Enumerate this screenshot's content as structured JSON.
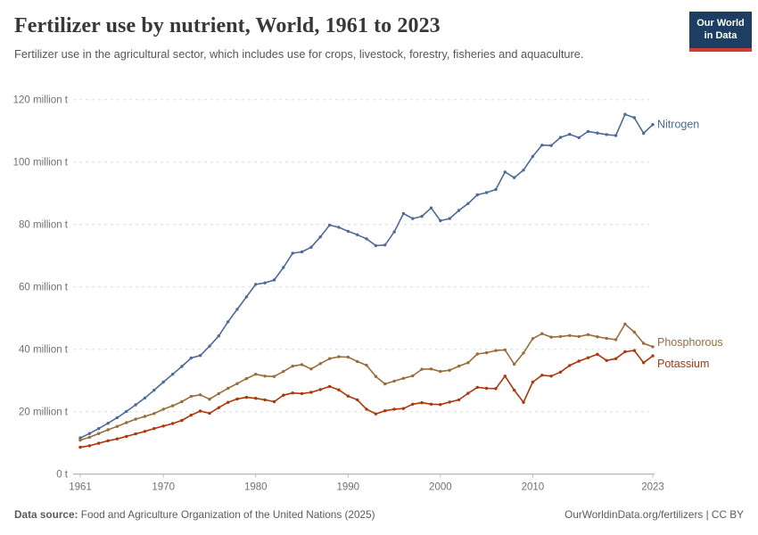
{
  "header": {
    "title": "Fertilizer use by nutrient, World, 1961 to 2023",
    "subtitle": "Fertilizer use in the agricultural sector, which includes use for crops, livestock, forestry, fisheries and aquaculture.",
    "logo": {
      "line1": "Our World",
      "line2": "in Data",
      "bg": "#1d3d63",
      "accent": "#d13c32"
    }
  },
  "footer": {
    "datasource_label": "Data source:",
    "datasource_value": " Food and Agriculture Organization of the United Nations (2025)",
    "credit": "OurWorldinData.org/fertilizers | CC BY"
  },
  "chart_data": {
    "type": "line",
    "title": "Fertilizer use by nutrient, World, 1961 to 2023",
    "xlabel": "",
    "ylabel": "million tonnes",
    "xlim": [
      1961,
      2023
    ],
    "ylim": [
      0,
      120
    ],
    "grid": "horizontal-dashed",
    "legend_position": "end-of-line",
    "colors": {
      "grid": "#dcdcdc",
      "axis": "#a0a0a0",
      "tick": "#c0c0c0",
      "tick_text": "#6e7175"
    },
    "yticks": [
      {
        "value": 0,
        "label": "0 t"
      },
      {
        "value": 20,
        "label": "20 million t"
      },
      {
        "value": 40,
        "label": "40 million t"
      },
      {
        "value": 60,
        "label": "60 million t"
      },
      {
        "value": 80,
        "label": "80 million t"
      },
      {
        "value": 100,
        "label": "100 million t"
      },
      {
        "value": 120,
        "label": "120 million t"
      }
    ],
    "xticks": [
      {
        "value": 1961,
        "label": "1961"
      },
      {
        "value": 1970,
        "label": "1970"
      },
      {
        "value": 1980,
        "label": "1980"
      },
      {
        "value": 1990,
        "label": "1990"
      },
      {
        "value": 2000,
        "label": "2000"
      },
      {
        "value": 2010,
        "label": "2010"
      },
      {
        "value": 2023,
        "label": "2023"
      }
    ],
    "x": [
      1961,
      1962,
      1963,
      1964,
      1965,
      1966,
      1967,
      1968,
      1969,
      1970,
      1971,
      1972,
      1973,
      1974,
      1975,
      1976,
      1977,
      1978,
      1979,
      1980,
      1981,
      1982,
      1983,
      1984,
      1985,
      1986,
      1987,
      1988,
      1989,
      1990,
      1991,
      1992,
      1993,
      1994,
      1995,
      1996,
      1997,
      1998,
      1999,
      2000,
      2001,
      2002,
      2003,
      2004,
      2005,
      2006,
      2007,
      2008,
      2009,
      2010,
      2011,
      2012,
      2013,
      2014,
      2015,
      2016,
      2017,
      2018,
      2019,
      2020,
      2021,
      2022,
      2023
    ],
    "series": [
      {
        "name": "Nitrogen",
        "color": "#4c6a9c",
        "label_dy": 0,
        "values": [
          11.6,
          13.0,
          14.6,
          16.3,
          18.1,
          20.1,
          22.2,
          24.4,
          26.9,
          29.5,
          32.0,
          34.5,
          37.2,
          38.0,
          41.0,
          44.3,
          48.8,
          52.8,
          56.8,
          60.8,
          61.3,
          62.2,
          66.2,
          70.8,
          71.2,
          72.7,
          76.0,
          79.8,
          79.1,
          77.8,
          76.7,
          75.4,
          73.2,
          73.4,
          77.6,
          83.5,
          81.9,
          82.6,
          85.3,
          81.2,
          81.9,
          84.5,
          86.7,
          89.5,
          90.2,
          91.2,
          96.8,
          95.0,
          97.4,
          101.8,
          105.4,
          105.3,
          107.9,
          108.9,
          107.8,
          109.8,
          109.3,
          108.8,
          108.5,
          115.3,
          114.2,
          109.2,
          112.0
        ]
      },
      {
        "name": "Phosphorous",
        "color": "#996d39",
        "label_dy": -5,
        "values": [
          10.9,
          11.8,
          13.0,
          14.2,
          15.3,
          16.5,
          17.6,
          18.5,
          19.4,
          20.8,
          21.9,
          23.2,
          24.9,
          25.4,
          24.0,
          25.8,
          27.5,
          29.0,
          30.6,
          32.0,
          31.4,
          31.3,
          32.9,
          34.6,
          35.1,
          33.7,
          35.4,
          37.0,
          37.6,
          37.5,
          36.1,
          34.9,
          31.3,
          28.9,
          29.8,
          30.7,
          31.5,
          33.6,
          33.7,
          32.9,
          33.3,
          34.6,
          35.7,
          38.5,
          38.9,
          39.6,
          39.8,
          35.2,
          38.8,
          43.4,
          45.0,
          43.9,
          44.1,
          44.4,
          44.1,
          44.7,
          44.0,
          43.5,
          43.1,
          48.1,
          45.5,
          41.9,
          40.8
        ]
      },
      {
        "name": "Potassium",
        "color": "#b13507",
        "label_dy": 9,
        "values": [
          8.6,
          9.1,
          9.9,
          10.7,
          11.3,
          12.1,
          12.9,
          13.7,
          14.6,
          15.4,
          16.2,
          17.2,
          18.9,
          20.2,
          19.5,
          21.3,
          23.0,
          24.1,
          24.6,
          24.3,
          23.8,
          23.2,
          25.3,
          26.0,
          25.8,
          26.2,
          27.1,
          28.1,
          27.0,
          25.0,
          23.8,
          20.8,
          19.3,
          20.3,
          20.8,
          21.0,
          22.4,
          22.9,
          22.4,
          22.3,
          23.1,
          23.8,
          25.9,
          27.8,
          27.5,
          27.4,
          31.4,
          26.9,
          23.0,
          29.5,
          31.7,
          31.4,
          32.7,
          34.8,
          36.2,
          37.3,
          38.4,
          36.4,
          37.0,
          39.2,
          39.6,
          35.7,
          37.9
        ]
      }
    ]
  }
}
